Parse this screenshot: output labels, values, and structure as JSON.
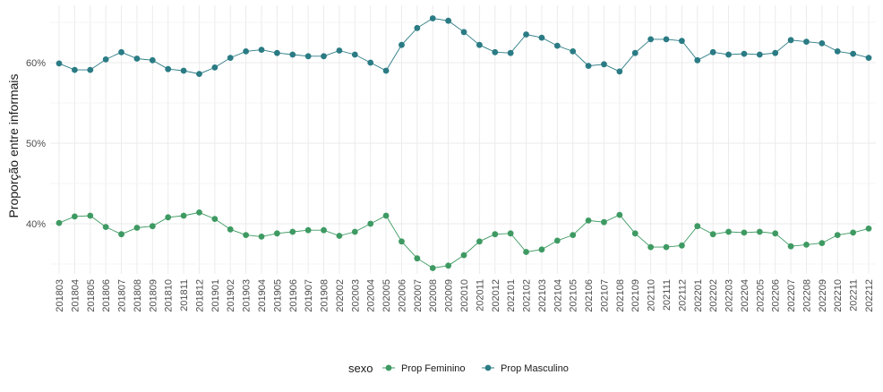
{
  "chart_data": {
    "type": "line",
    "ylabel": "Proporção entre informais",
    "xlabel": "",
    "y_ticks": [
      {
        "value": 0.4,
        "label": "40%"
      },
      {
        "value": 0.5,
        "label": "50%"
      },
      {
        "value": 0.6,
        "label": "60%"
      }
    ],
    "ylim": [
      0.33,
      0.67
    ],
    "grid": true,
    "legend": {
      "title": "sexo",
      "position": "bottom"
    },
    "x": [
      "201803",
      "201804",
      "201805",
      "201806",
      "201807",
      "201808",
      "201809",
      "201810",
      "201811",
      "201812",
      "201901",
      "201902",
      "201903",
      "201904",
      "201905",
      "201906",
      "201907",
      "201908",
      "202002",
      "202003",
      "202004",
      "202005",
      "202006",
      "202007",
      "202008",
      "202009",
      "202010",
      "202011",
      "202012",
      "202101",
      "202102",
      "202103",
      "202104",
      "202105",
      "202106",
      "202107",
      "202108",
      "202109",
      "202110",
      "202111",
      "202112",
      "202201",
      "202202",
      "202203",
      "202204",
      "202205",
      "202206",
      "202207",
      "202208",
      "202209",
      "202210",
      "202211",
      "202212"
    ],
    "series": [
      {
        "name": "Prop Feminino",
        "color": "#3e9a62",
        "values": [
          0.401,
          0.409,
          0.41,
          0.396,
          0.387,
          0.395,
          0.397,
          0.408,
          0.41,
          0.414,
          0.406,
          0.393,
          0.386,
          0.384,
          0.388,
          0.39,
          0.392,
          0.392,
          0.385,
          0.39,
          0.4,
          0.41,
          0.378,
          0.357,
          0.345,
          0.348,
          0.361,
          0.378,
          0.387,
          0.388,
          0.365,
          0.368,
          0.379,
          0.386,
          0.404,
          0.402,
          0.411,
          0.388,
          0.371,
          0.371,
          0.373,
          0.397,
          0.387,
          0.39,
          0.389,
          0.39,
          0.388,
          0.372,
          0.374,
          0.376,
          0.386,
          0.389,
          0.394
        ]
      },
      {
        "name": "Prop Masculino",
        "color": "#2a7b84",
        "values": [
          0.599,
          0.591,
          0.591,
          0.604,
          0.613,
          0.605,
          0.603,
          0.592,
          0.59,
          0.586,
          0.594,
          0.606,
          0.614,
          0.616,
          0.612,
          0.61,
          0.608,
          0.608,
          0.615,
          0.61,
          0.6,
          0.59,
          0.622,
          0.643,
          0.655,
          0.652,
          0.638,
          0.622,
          0.613,
          0.612,
          0.635,
          0.631,
          0.621,
          0.614,
          0.596,
          0.598,
          0.589,
          0.612,
          0.629,
          0.629,
          0.627,
          0.603,
          0.613,
          0.61,
          0.611,
          0.61,
          0.612,
          0.628,
          0.626,
          0.624,
          0.614,
          0.611,
          0.606
        ]
      }
    ]
  }
}
